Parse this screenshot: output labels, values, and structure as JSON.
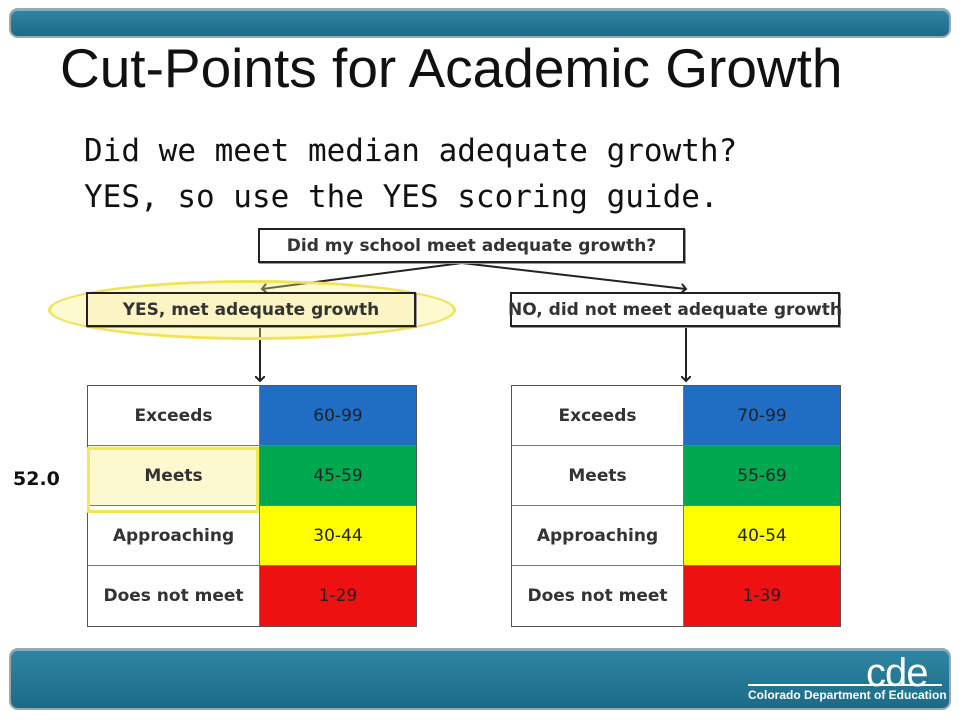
{
  "slide": {
    "title": "Cut-Points for Academic Growth",
    "subtitle_line1": "Did we meet median adequate growth?",
    "subtitle_line2": "YES, so use the YES scoring guide.",
    "score": "52.0"
  },
  "flowchart": {
    "root": "Did my school meet adequate growth?",
    "yes_branch": "YES, met adequate growth",
    "no_branch": "NO, did not meet adequate growth"
  },
  "yes_table": [
    {
      "label": "Exceeds",
      "range": "60-99",
      "color": "#1f6ec4"
    },
    {
      "label": "Meets",
      "range": "45-59",
      "color": "#00a84f"
    },
    {
      "label": "Approaching",
      "range": "30-44",
      "color": "#ffff00"
    },
    {
      "label": "Does not meet",
      "range": "1-29",
      "color": "#ee1111"
    }
  ],
  "no_table": [
    {
      "label": "Exceeds",
      "range": "70-99",
      "color": "#1f6ec4"
    },
    {
      "label": "Meets",
      "range": "55-69",
      "color": "#00a84f"
    },
    {
      "label": "Approaching",
      "range": "40-54",
      "color": "#ffff00"
    },
    {
      "label": "Does not meet",
      "range": "1-39",
      "color": "#ee1111"
    }
  ],
  "footer": {
    "logo_text": "cde",
    "org_name": "Colorado Department of Education"
  },
  "colors": {
    "bar": "#1b6b87",
    "highlight": "#f2ea55"
  }
}
